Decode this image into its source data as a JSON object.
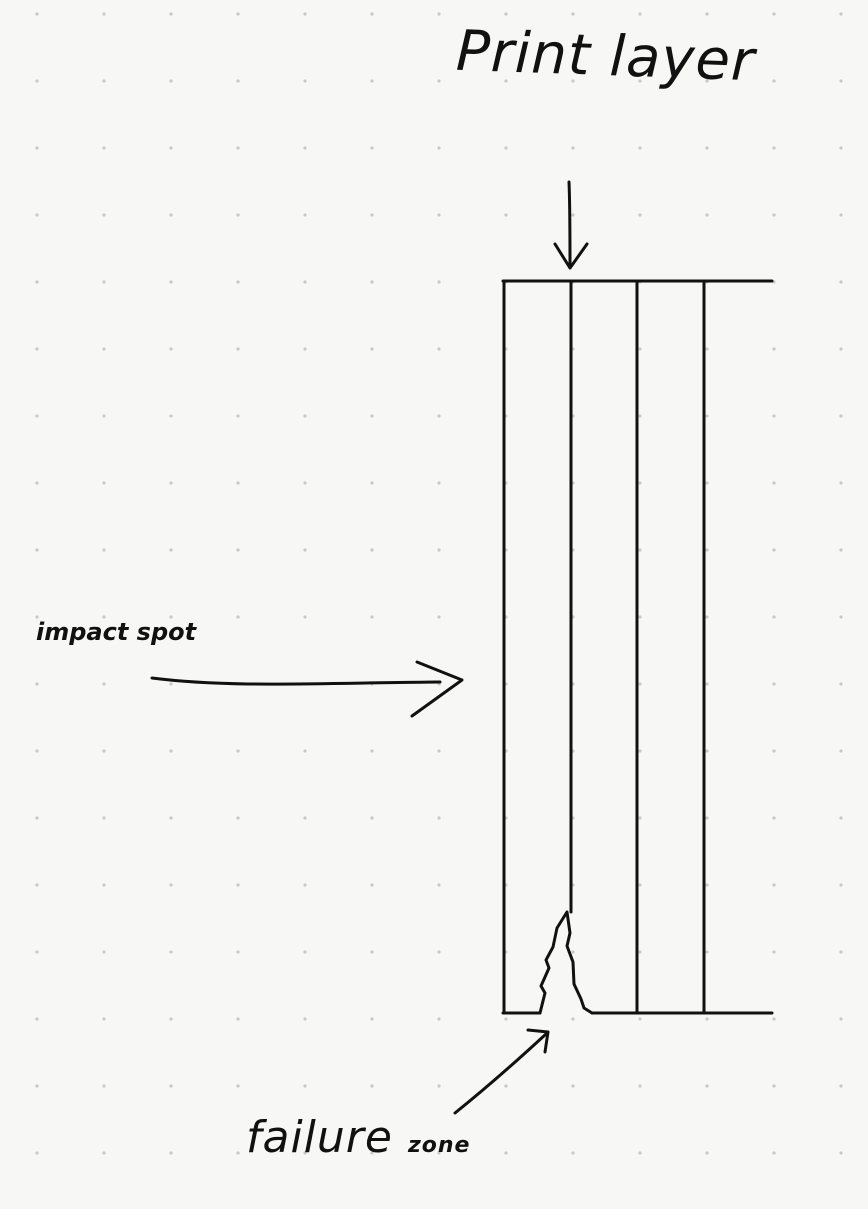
{
  "labels": {
    "print_layer": "Print layer",
    "impact_spot": "impact spot",
    "failure_zone_word1": "failure",
    "failure_zone_word2": "zone"
  },
  "colors": {
    "paper": "#f7f7f5",
    "ink": "#111111",
    "grid_dot": "#c9c9c6"
  },
  "drawing": {
    "layer_count": 3,
    "notes": ""
  }
}
